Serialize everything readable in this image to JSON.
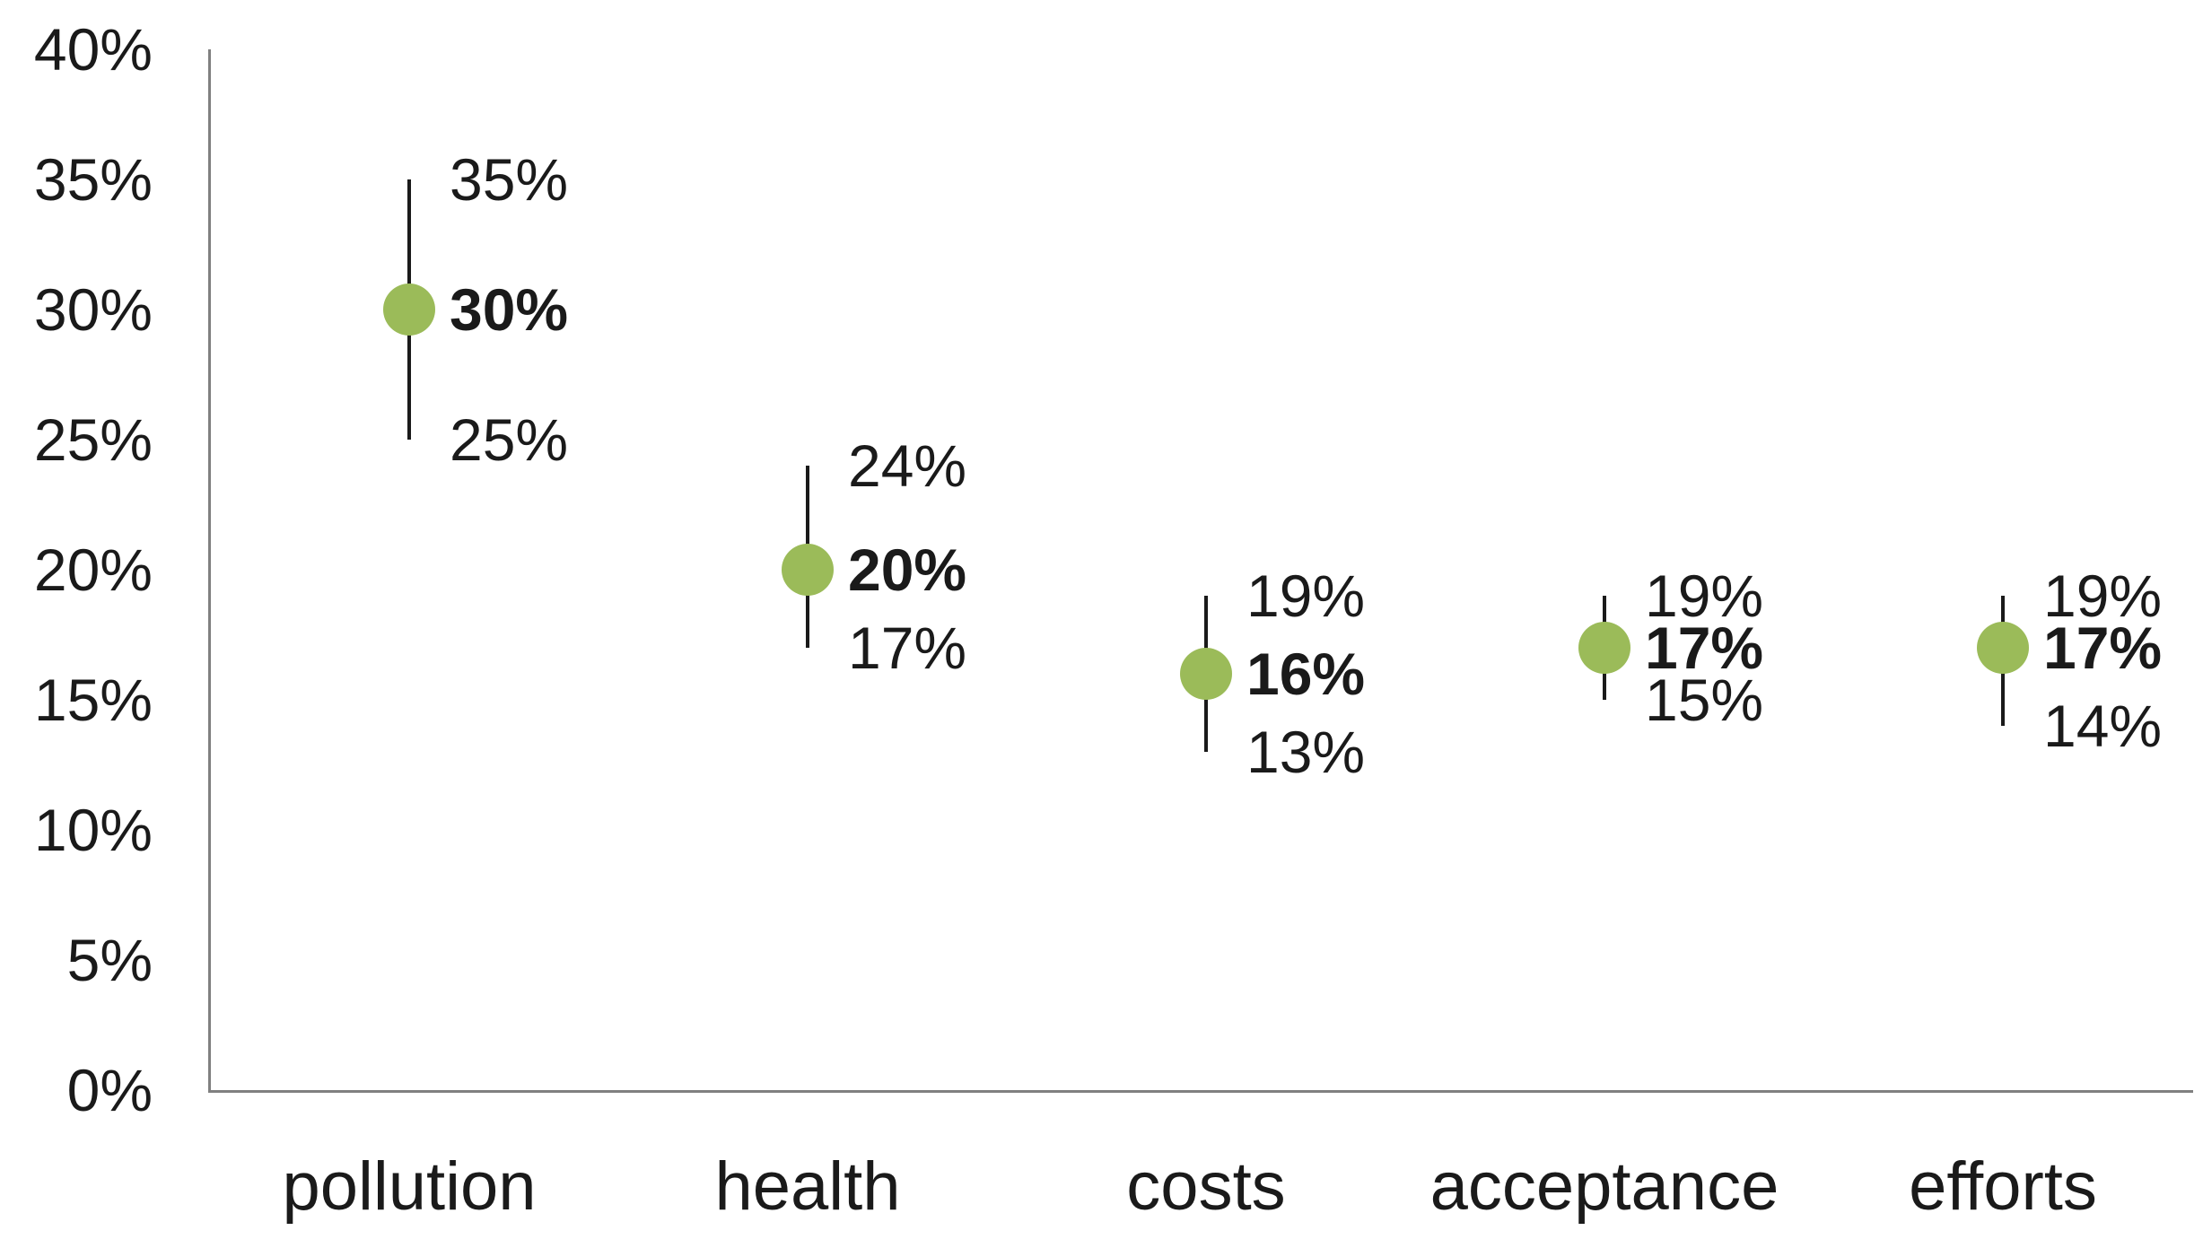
{
  "chart_data": {
    "type": "scatter",
    "subtype": "mean-with-error-bars",
    "categories": [
      "pollution",
      "health",
      "costs",
      "acceptance",
      "efforts"
    ],
    "series": [
      {
        "name": "mean",
        "values": [
          30,
          20,
          16,
          17,
          17
        ],
        "upper": [
          35,
          24,
          19,
          19,
          19
        ],
        "lower": [
          25,
          17,
          13,
          15,
          14
        ]
      }
    ],
    "point_labels": {
      "upper": [
        "35%",
        "24%",
        "19%",
        "19%",
        "19%"
      ],
      "value": [
        "30%",
        "20%",
        "16%",
        "17%",
        "17%"
      ],
      "lower": [
        "25%",
        "17%",
        "13%",
        "15%",
        "14%"
      ]
    },
    "yticks": [
      "0%",
      "5%",
      "10%",
      "15%",
      "20%",
      "25%",
      "30%",
      "35%",
      "40%"
    ],
    "ylim": [
      0,
      40
    ],
    "ytick_step": 5,
    "grid": false,
    "legend": "none",
    "colors": {
      "marker": "#9bbb59",
      "error_bar": "#1a1a1a",
      "axis": "#808080",
      "text": "#1a1a1a",
      "background": "#ffffff"
    }
  }
}
